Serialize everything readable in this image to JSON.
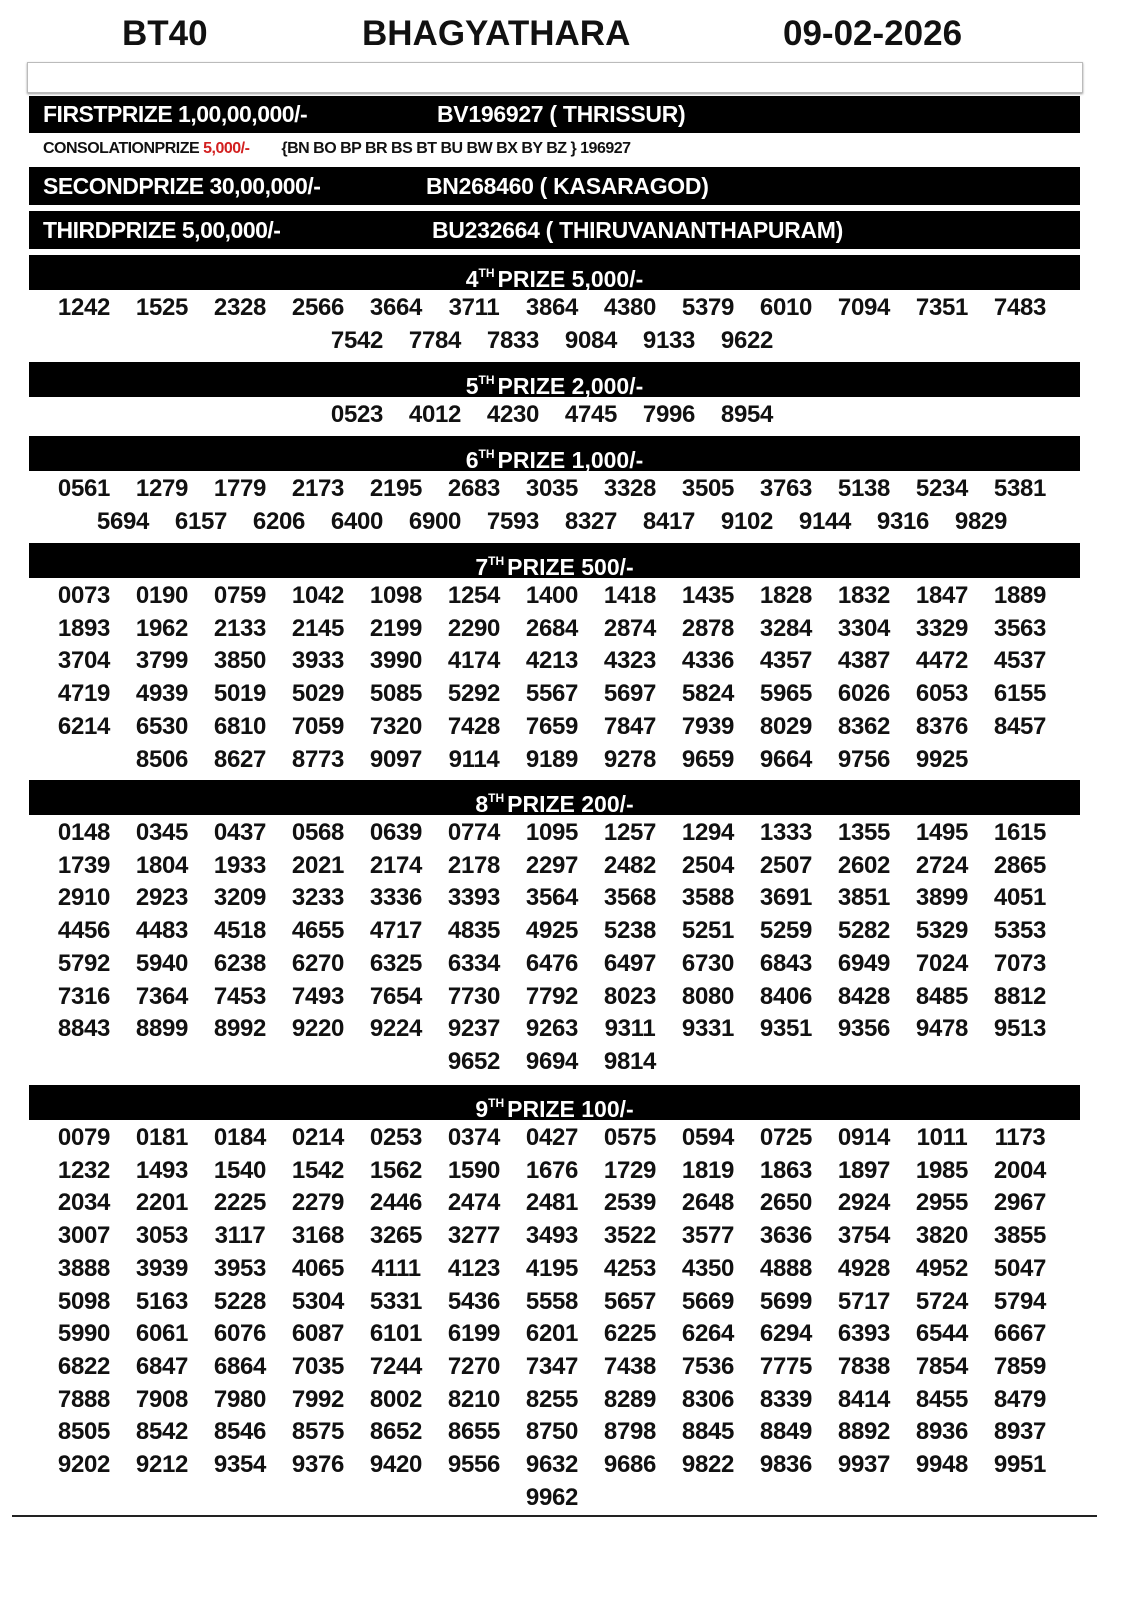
{
  "header": {
    "code": "BT40",
    "title": "BHAGYATHARA",
    "date": "09-02-2026"
  },
  "first_prize": {
    "label": "FIRSTPRIZE 1,00,00,000/-",
    "winner": "BV196927 ( THRISSUR)"
  },
  "consolation": {
    "label": "CONSOLATIONPRIZE",
    "amount": "5,000/-",
    "series": "{BN BO BP BR BS BT BU BW BX BY BZ } 196927"
  },
  "second_prize": {
    "label": "SECONDPRIZE 30,00,000/-",
    "winner": "BN268460 ( KASARAGOD)"
  },
  "third_prize": {
    "label": "THIRDPRIZE 5,00,000/-",
    "winner": "BU232664 ( THIRUVANANTHAPURAM)"
  },
  "prizes": [
    {
      "ordinal": "4",
      "suffix": "TH",
      "label": "PRIZE 5,000/-",
      "numbers": [
        "1242",
        "1525",
        "2328",
        "2566",
        "3664",
        "3711",
        "3864",
        "4380",
        "5379",
        "6010",
        "7094",
        "7351",
        "7483",
        "7542",
        "7784",
        "7833",
        "9084",
        "9133",
        "9622"
      ]
    },
    {
      "ordinal": "5",
      "suffix": "TH",
      "label": "PRIZE 2,000/-",
      "numbers": [
        "0523",
        "4012",
        "4230",
        "4745",
        "7996",
        "8954"
      ]
    },
    {
      "ordinal": "6",
      "suffix": "TH",
      "label": "PRIZE 1,000/-",
      "numbers": [
        "0561",
        "1279",
        "1779",
        "2173",
        "2195",
        "2683",
        "3035",
        "3328",
        "3505",
        "3763",
        "5138",
        "5234",
        "5381",
        "5694",
        "6157",
        "6206",
        "6400",
        "6900",
        "7593",
        "8327",
        "8417",
        "9102",
        "9144",
        "9316",
        "9829"
      ]
    },
    {
      "ordinal": "7",
      "suffix": "TH",
      "label": "PRIZE 500/-",
      "numbers": [
        "0073",
        "0190",
        "0759",
        "1042",
        "1098",
        "1254",
        "1400",
        "1418",
        "1435",
        "1828",
        "1832",
        "1847",
        "1889",
        "1893",
        "1962",
        "2133",
        "2145",
        "2199",
        "2290",
        "2684",
        "2874",
        "2878",
        "3284",
        "3304",
        "3329",
        "3563",
        "3704",
        "3799",
        "3850",
        "3933",
        "3990",
        "4174",
        "4213",
        "4323",
        "4336",
        "4357",
        "4387",
        "4472",
        "4537",
        "4719",
        "4939",
        "5019",
        "5029",
        "5085",
        "5292",
        "5567",
        "5697",
        "5824",
        "5965",
        "6026",
        "6053",
        "6155",
        "6214",
        "6530",
        "6810",
        "7059",
        "7320",
        "7428",
        "7659",
        "7847",
        "7939",
        "8029",
        "8362",
        "8376",
        "8457",
        "8506",
        "8627",
        "8773",
        "9097",
        "9114",
        "9189",
        "9278",
        "9659",
        "9664",
        "9756",
        "9925"
      ]
    },
    {
      "ordinal": "8",
      "suffix": "TH",
      "label": "PRIZE 200/-",
      "numbers": [
        "0148",
        "0345",
        "0437",
        "0568",
        "0639",
        "0774",
        "1095",
        "1257",
        "1294",
        "1333",
        "1355",
        "1495",
        "1615",
        "1739",
        "1804",
        "1933",
        "2021",
        "2174",
        "2178",
        "2297",
        "2482",
        "2504",
        "2507",
        "2602",
        "2724",
        "2865",
        "2910",
        "2923",
        "3209",
        "3233",
        "3336",
        "3393",
        "3564",
        "3568",
        "3588",
        "3691",
        "3851",
        "3899",
        "4051",
        "4456",
        "4483",
        "4518",
        "4655",
        "4717",
        "4835",
        "4925",
        "5238",
        "5251",
        "5259",
        "5282",
        "5329",
        "5353",
        "5792",
        "5940",
        "6238",
        "6270",
        "6325",
        "6334",
        "6476",
        "6497",
        "6730",
        "6843",
        "6949",
        "7024",
        "7073",
        "7316",
        "7364",
        "7453",
        "7493",
        "7654",
        "7730",
        "7792",
        "8023",
        "8080",
        "8406",
        "8428",
        "8485",
        "8812",
        "8843",
        "8899",
        "8992",
        "9220",
        "9224",
        "9237",
        "9263",
        "9311",
        "9331",
        "9351",
        "9356",
        "9478",
        "9513",
        "9652",
        "9694",
        "9814"
      ]
    },
    {
      "ordinal": "9",
      "suffix": "TH",
      "label": "PRIZE 100/-",
      "numbers": [
        "0079",
        "0181",
        "0184",
        "0214",
        "0253",
        "0374",
        "0427",
        "0575",
        "0594",
        "0725",
        "0914",
        "1011",
        "1173",
        "1232",
        "1493",
        "1540",
        "1542",
        "1562",
        "1590",
        "1676",
        "1729",
        "1819",
        "1863",
        "1897",
        "1985",
        "2004",
        "2034",
        "2201",
        "2225",
        "2279",
        "2446",
        "2474",
        "2481",
        "2539",
        "2648",
        "2650",
        "2924",
        "2955",
        "2967",
        "3007",
        "3053",
        "3117",
        "3168",
        "3265",
        "3277",
        "3493",
        "3522",
        "3577",
        "3636",
        "3754",
        "3820",
        "3855",
        "3888",
        "3939",
        "3953",
        "4065",
        "4111",
        "4123",
        "4195",
        "4253",
        "4350",
        "4888",
        "4928",
        "4952",
        "5047",
        "5098",
        "5163",
        "5228",
        "5304",
        "5331",
        "5436",
        "5558",
        "5657",
        "5669",
        "5699",
        "5717",
        "5724",
        "5794",
        "5990",
        "6061",
        "6076",
        "6087",
        "6101",
        "6199",
        "6201",
        "6225",
        "6264",
        "6294",
        "6393",
        "6544",
        "6667",
        "6822",
        "6847",
        "6864",
        "7035",
        "7244",
        "7270",
        "7347",
        "7438",
        "7536",
        "7775",
        "7838",
        "7854",
        "7859",
        "7888",
        "7908",
        "7980",
        "7992",
        "8002",
        "8210",
        "8255",
        "8289",
        "8306",
        "8339",
        "8414",
        "8455",
        "8479",
        "8505",
        "8542",
        "8546",
        "8575",
        "8652",
        "8655",
        "8750",
        "8798",
        "8845",
        "8849",
        "8892",
        "8936",
        "8937",
        "9202",
        "9212",
        "9354",
        "9376",
        "9420",
        "9556",
        "9632",
        "9686",
        "9822",
        "9836",
        "9937",
        "9948",
        "9951",
        "9962"
      ]
    }
  ]
}
